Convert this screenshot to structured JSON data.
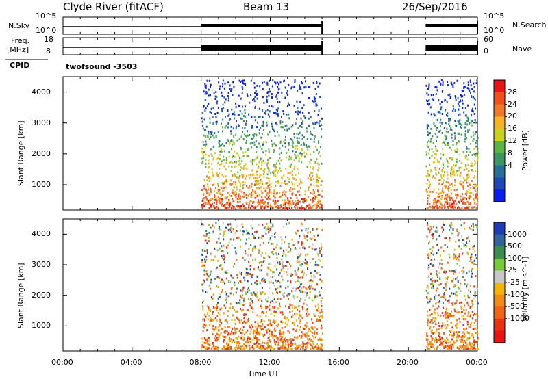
{
  "header": {
    "station": "Clyde River (fitACF)",
    "beam": "Beam 13",
    "date": "26/Sep/2016"
  },
  "top_panels": {
    "nsky_label": "N.Sky",
    "nsky_ticks": [
      "10^5",
      "10^0"
    ],
    "nsearch_label": "N.Search",
    "nsearch_ticks": [
      "10^5",
      "10^0"
    ],
    "freq_label_1": "Freq.",
    "freq_label_2": "[MHz]",
    "freq_ticks": [
      "18",
      "8"
    ],
    "nave_label": "Nave",
    "nave_ticks": [
      "60",
      "0"
    ],
    "cpid_label": "CPID",
    "cpid_text": "twofsound  -3503"
  },
  "chart_data": [
    {
      "type": "heatmap",
      "name": "power-panel",
      "ylabel": "Slant Range [km]",
      "yticks": [
        1000,
        2000,
        3000,
        4000
      ],
      "ylim": [
        180,
        4500
      ],
      "colorbar_label": "Power [dB]",
      "colorbar_ticks": [
        "28",
        "24",
        "20",
        "16",
        "12",
        "8",
        "4"
      ],
      "colorbar_colors": [
        "#e8141a",
        "#f0501e",
        "#f07828",
        "#f5b423",
        "#c8d21e",
        "#5ab446",
        "#3c9664",
        "#286e96",
        "#1e46b4",
        "#0a1ef0"
      ],
      "data_windows_hours": [
        [
          8.0,
          15.0
        ],
        [
          21.0,
          24.0
        ]
      ]
    },
    {
      "type": "heatmap",
      "name": "velocity-panel",
      "ylabel": "Slant Range [km]",
      "yticks": [
        1000,
        2000,
        3000,
        4000
      ],
      "ylim": [
        180,
        4500
      ],
      "colorbar_label": "Velocity [m s^-1]",
      "colorbar_ticks": [
        "1000",
        "500",
        "100",
        "25",
        "-25",
        "-100",
        "-500",
        "-1000"
      ],
      "colorbar_colors": [
        "#1e3cb4",
        "#32649a",
        "#3c8c50",
        "#78c83c",
        "#c8c8c8",
        "#f5b40a",
        "#f08c14",
        "#f06414",
        "#e83214",
        "#e81414"
      ],
      "data_windows_hours": [
        [
          8.0,
          15.0
        ],
        [
          21.0,
          24.0
        ]
      ]
    }
  ],
  "xaxis": {
    "ticks": [
      "00:00",
      "04:00",
      "08:00",
      "12:00",
      "16:00",
      "20:00",
      "00:00"
    ],
    "label": "Time UT",
    "range_hours": [
      0,
      24
    ]
  },
  "colors": {
    "frame": "#000000",
    "background": "#ffffff"
  }
}
